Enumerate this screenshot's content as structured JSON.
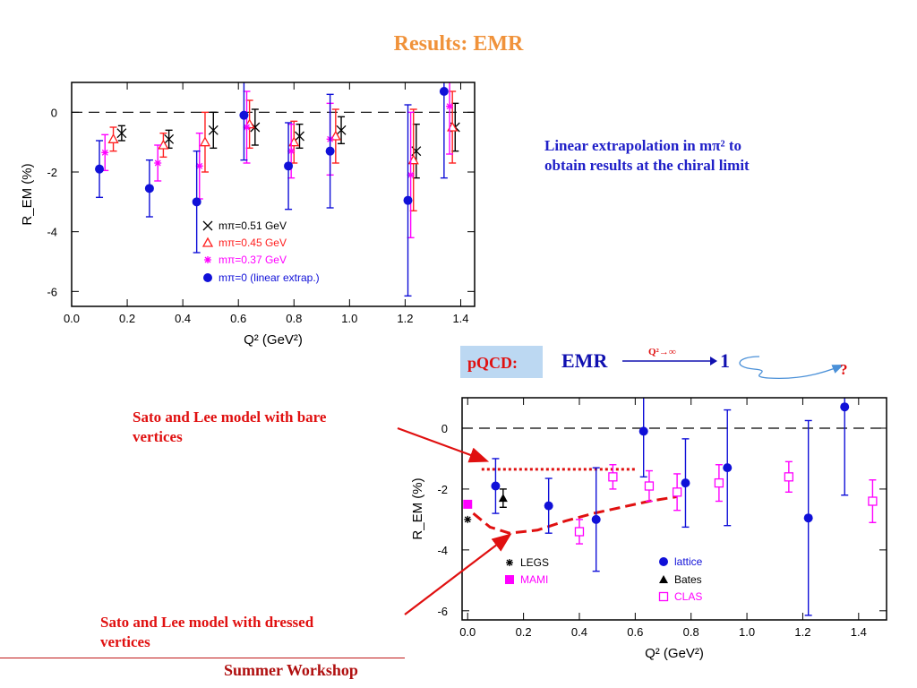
{
  "slide": {
    "title": "Results: EMR",
    "explanation": [
      "Linear extrapolation in mπ² to",
      "obtain results at the chiral limit"
    ],
    "pqcd_label": "pQCD:",
    "pqcd_formula": {
      "lhs": "EMR",
      "arrow_label": "Q²→∞",
      "rhs": "1",
      "question": "?"
    },
    "annotation_bare": [
      "Sato and Lee model with bare",
      "vertices"
    ],
    "annotation_dressed": [
      "Sato and Lee model with dressed",
      "vertices"
    ],
    "footer": "Summer Workshop"
  },
  "colors": {
    "title": "#f0923a",
    "explanation": "#2020c8",
    "annotation": "#e01010",
    "pqcd_box": "#bcd8f2",
    "m051": "#000000",
    "m045": "#ff2020",
    "m037": "#ff00ff",
    "m0": "#1010d8",
    "model": "#e01010"
  },
  "chart_data": [
    {
      "type": "scatter",
      "xlabel": "Q² (GeV²)",
      "ylabel": "R_EM (%)",
      "xlim": [
        0.0,
        1.45
      ],
      "ylim": [
        -6.5,
        1.0
      ],
      "xticks": [
        "0.0",
        "0.2",
        "0.4",
        "0.6",
        "0.8",
        "1.0",
        "1.2",
        "1.4"
      ],
      "yticks": [
        "0",
        "-2",
        "-4",
        "-6"
      ],
      "reference_line_y": 0,
      "legend_position": "bottom-center",
      "series": [
        {
          "name": "mπ=0.51 GeV",
          "marker": "x",
          "color": "#000000",
          "x": [
            0.18,
            0.35,
            0.51,
            0.66,
            0.82,
            0.97,
            1.24,
            1.38
          ],
          "y": [
            -0.7,
            -0.9,
            -0.6,
            -0.5,
            -0.8,
            -0.6,
            -1.3,
            -0.5
          ],
          "err": [
            0.25,
            0.3,
            0.6,
            0.6,
            0.4,
            0.45,
            0.9,
            0.8
          ]
        },
        {
          "name": "mπ=0.45 GeV",
          "marker": "triangle",
          "color": "#ff2020",
          "x": [
            0.15,
            0.33,
            0.48,
            0.64,
            0.8,
            0.95,
            1.23,
            1.37
          ],
          "y": [
            -0.9,
            -1.1,
            -1.0,
            -0.4,
            -1.0,
            -0.8,
            -1.6,
            -0.5
          ],
          "err": [
            0.4,
            0.4,
            1.0,
            0.8,
            0.7,
            0.9,
            1.7,
            1.2
          ]
        },
        {
          "name": "mπ=0.37 GeV",
          "marker": "star",
          "color": "#ff00ff",
          "x": [
            0.12,
            0.31,
            0.46,
            0.63,
            0.79,
            0.93,
            1.22,
            1.36
          ],
          "y": [
            -1.35,
            -1.7,
            -1.8,
            -0.5,
            -1.3,
            -0.9,
            -2.1,
            0.2
          ],
          "err": [
            0.6,
            0.6,
            1.1,
            1.2,
            0.9,
            1.2,
            2.1,
            1.6
          ]
        },
        {
          "name": "mπ=0 (linear extrap.)",
          "marker": "circle",
          "color": "#1010d8",
          "x": [
            0.1,
            0.28,
            0.45,
            0.62,
            0.78,
            0.93,
            1.21,
            1.34
          ],
          "y": [
            -1.9,
            -2.55,
            -3.0,
            -0.1,
            -1.8,
            -1.3,
            -2.95,
            0.7
          ],
          "err": [
            0.95,
            0.95,
            1.7,
            1.5,
            1.45,
            1.9,
            3.2,
            2.9
          ]
        }
      ]
    },
    {
      "type": "scatter",
      "xlabel": "Q² (GeV²)",
      "ylabel": "R_EM (%)",
      "xlim": [
        -0.02,
        1.5
      ],
      "ylim": [
        -6.3,
        1.0
      ],
      "xticks": [
        "0.0",
        "0.2",
        "0.4",
        "0.6",
        "0.8",
        "1.0",
        "1.2",
        "1.4"
      ],
      "yticks": [
        "0",
        "-2",
        "-4",
        "-6"
      ],
      "reference_line_y": 0,
      "legend_position": "bottom",
      "series": [
        {
          "name": "lattice",
          "marker": "circle",
          "color": "#1010d8",
          "x": [
            0.1,
            0.29,
            0.46,
            0.63,
            0.78,
            0.93,
            1.22,
            1.35
          ],
          "y": [
            -1.9,
            -2.55,
            -3.0,
            -0.1,
            -1.8,
            -1.3,
            -2.95,
            0.7
          ],
          "err": [
            0.9,
            0.9,
            1.7,
            1.5,
            1.45,
            1.9,
            3.2,
            2.9
          ]
        },
        {
          "name": "Bates",
          "marker": "triangle-filled",
          "color": "#000000",
          "x": [
            0.127
          ],
          "y": [
            -2.3
          ],
          "err": [
            0.3
          ]
        },
        {
          "name": "CLAS",
          "marker": "square-open",
          "color": "#ff00ff",
          "x": [
            0.4,
            0.52,
            0.65,
            0.75,
            0.9,
            1.15,
            1.45
          ],
          "y": [
            -3.4,
            -1.6,
            -1.9,
            -2.1,
            -1.8,
            -1.6,
            -2.4
          ],
          "err": [
            0.4,
            0.4,
            0.5,
            0.6,
            0.6,
            0.5,
            0.7
          ]
        },
        {
          "name": "LEGS",
          "marker": "star",
          "color": "#000000",
          "x": [
            0.0
          ],
          "y": [
            -3.0
          ],
          "err": [
            0
          ]
        },
        {
          "name": "MAMI",
          "marker": "square-filled",
          "color": "#ff00ff",
          "x": [
            0.0
          ],
          "y": [
            -2.5
          ],
          "err": [
            0
          ]
        }
      ],
      "models": [
        {
          "name": "Sato and Lee model with bare vertices",
          "style": "dotted",
          "x": [
            0.05,
            0.6
          ],
          "y": [
            -1.35,
            -1.35
          ]
        },
        {
          "name": "Sato and Lee model with dressed vertices",
          "style": "dashed",
          "x": [
            0.02,
            0.08,
            0.15,
            0.25,
            0.35,
            0.45,
            0.55,
            0.65,
            0.75
          ],
          "y": [
            -2.8,
            -3.25,
            -3.45,
            -3.35,
            -3.05,
            -2.8,
            -2.6,
            -2.4,
            -2.25
          ]
        }
      ]
    }
  ]
}
